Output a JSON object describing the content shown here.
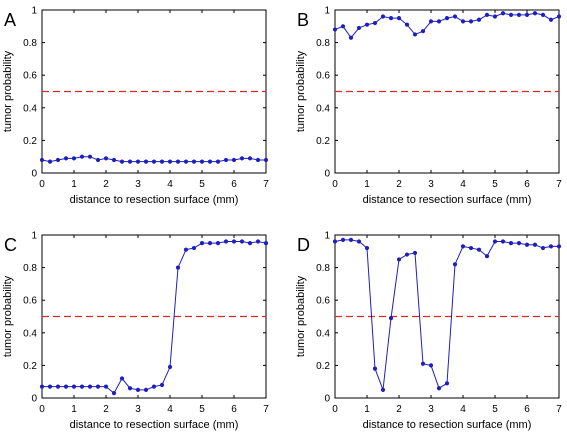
{
  "chart_data": [
    {
      "type": "line",
      "panel_label": "A",
      "xlabel": "distance to resection surface (mm)",
      "ylabel": "tumor probability",
      "xlim": [
        0,
        7
      ],
      "ylim": [
        0,
        1
      ],
      "xticks": [
        0,
        1,
        2,
        3,
        4,
        5,
        6,
        7
      ],
      "yticks": [
        0,
        0.2,
        0.4,
        0.6,
        0.8,
        1
      ],
      "ytick_labels": [
        "0",
        "0.2",
        "0.4",
        "0.6",
        "0.8",
        "1"
      ],
      "grid": false,
      "threshold": 0.5,
      "series": [
        {
          "color": "#1f1fbf",
          "x": [
            0,
            0.25,
            0.5,
            0.75,
            1,
            1.25,
            1.5,
            1.75,
            2,
            2.25,
            2.5,
            2.75,
            3,
            3.25,
            3.5,
            3.75,
            4,
            4.25,
            4.5,
            4.75,
            5,
            5.25,
            5.5,
            5.75,
            6,
            6.25,
            6.5,
            6.75,
            7
          ],
          "y": [
            0.08,
            0.07,
            0.08,
            0.09,
            0.09,
            0.1,
            0.1,
            0.08,
            0.09,
            0.08,
            0.07,
            0.07,
            0.07,
            0.07,
            0.07,
            0.07,
            0.07,
            0.07,
            0.07,
            0.07,
            0.07,
            0.07,
            0.07,
            0.08,
            0.08,
            0.09,
            0.09,
            0.08,
            0.08
          ]
        }
      ]
    },
    {
      "type": "line",
      "panel_label": "B",
      "xlabel": "distance to resection surface (mm)",
      "ylabel": "tumor probability",
      "xlim": [
        0,
        7
      ],
      "ylim": [
        0,
        1
      ],
      "xticks": [
        0,
        1,
        2,
        3,
        4,
        5,
        6,
        7
      ],
      "yticks": [
        0,
        0.2,
        0.4,
        0.6,
        0.8,
        1
      ],
      "ytick_labels": [
        "0",
        "0.2",
        "0.4",
        "0.6",
        "0.8",
        "1"
      ],
      "grid": false,
      "threshold": 0.5,
      "series": [
        {
          "color": "#1f1fbf",
          "x": [
            0,
            0.25,
            0.5,
            0.75,
            1,
            1.25,
            1.5,
            1.75,
            2,
            2.25,
            2.5,
            2.75,
            3,
            3.25,
            3.5,
            3.75,
            4,
            4.25,
            4.5,
            4.75,
            5,
            5.25,
            5.5,
            5.75,
            6,
            6.25,
            6.5,
            6.75,
            7
          ],
          "y": [
            0.88,
            0.9,
            0.83,
            0.89,
            0.91,
            0.92,
            0.96,
            0.95,
            0.95,
            0.91,
            0.85,
            0.87,
            0.93,
            0.93,
            0.95,
            0.96,
            0.93,
            0.93,
            0.94,
            0.97,
            0.96,
            0.98,
            0.97,
            0.97,
            0.97,
            0.98,
            0.97,
            0.94,
            0.96
          ]
        }
      ]
    },
    {
      "type": "line",
      "panel_label": "C",
      "xlabel": "distance to resection surface (mm)",
      "ylabel": "tumor probability",
      "xlim": [
        0,
        7
      ],
      "ylim": [
        0,
        1
      ],
      "xticks": [
        0,
        1,
        2,
        3,
        4,
        5,
        6,
        7
      ],
      "yticks": [
        0,
        0.2,
        0.4,
        0.6,
        0.8,
        1
      ],
      "ytick_labels": [
        "0",
        "0.2",
        "0.4",
        "0.6",
        "0.8",
        "1"
      ],
      "grid": false,
      "threshold": 0.5,
      "series": [
        {
          "color": "#1f1fbf",
          "x": [
            0,
            0.25,
            0.5,
            0.75,
            1,
            1.25,
            1.5,
            1.75,
            2,
            2.25,
            2.5,
            2.75,
            3,
            3.25,
            3.5,
            3.75,
            4,
            4.25,
            4.5,
            4.75,
            5,
            5.25,
            5.5,
            5.75,
            6,
            6.25,
            6.5,
            6.75,
            7
          ],
          "y": [
            0.07,
            0.07,
            0.07,
            0.07,
            0.07,
            0.07,
            0.07,
            0.07,
            0.07,
            0.03,
            0.12,
            0.06,
            0.05,
            0.05,
            0.07,
            0.08,
            0.19,
            0.8,
            0.91,
            0.92,
            0.95,
            0.95,
            0.95,
            0.96,
            0.96,
            0.96,
            0.95,
            0.96,
            0.95
          ]
        }
      ]
    },
    {
      "type": "line",
      "panel_label": "D",
      "xlabel": "distance to resection surface (mm)",
      "ylabel": "tumor probability",
      "xlim": [
        0,
        7
      ],
      "ylim": [
        0,
        1
      ],
      "xticks": [
        0,
        1,
        2,
        3,
        4,
        5,
        6,
        7
      ],
      "yticks": [
        0,
        0.2,
        0.4,
        0.6,
        0.8,
        1
      ],
      "ytick_labels": [
        "0",
        "0.2",
        "0.4",
        "0.6",
        "0.8",
        "1"
      ],
      "grid": false,
      "threshold": 0.5,
      "series": [
        {
          "color": "#1f1fbf",
          "x": [
            0,
            0.25,
            0.5,
            0.75,
            1,
            1.25,
            1.5,
            1.75,
            2,
            2.25,
            2.5,
            2.75,
            3,
            3.25,
            3.5,
            3.75,
            4,
            4.25,
            4.5,
            4.75,
            5,
            5.25,
            5.5,
            5.75,
            6,
            6.25,
            6.5,
            6.75,
            7
          ],
          "y": [
            0.96,
            0.97,
            0.97,
            0.96,
            0.92,
            0.18,
            0.05,
            0.49,
            0.85,
            0.88,
            0.89,
            0.21,
            0.2,
            0.06,
            0.09,
            0.82,
            0.93,
            0.92,
            0.91,
            0.87,
            0.96,
            0.96,
            0.95,
            0.95,
            0.94,
            0.94,
            0.92,
            0.93,
            0.93
          ]
        }
      ]
    }
  ],
  "colors": {
    "series_line": "#1f1fbf",
    "threshold_line": "#d42a2a",
    "axis": "#000000"
  }
}
